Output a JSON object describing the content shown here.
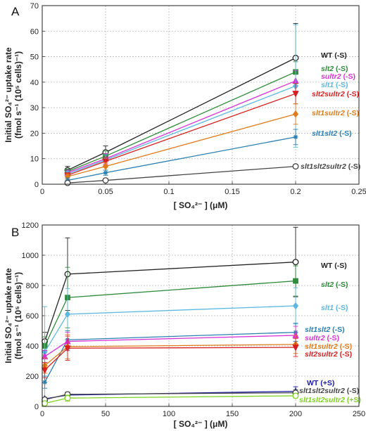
{
  "figure": {
    "ylabel_line1": "Initial SO₄²⁻ uptake rate",
    "ylabel_line2": "(fmol s⁻¹ (10⁵ cells)⁻¹)"
  },
  "chart_data": [
    {
      "panel": "A",
      "type": "line",
      "xlabel": "[ SO₄²⁻ ] (μM)",
      "ylabel": "Initial SO₄²⁻ uptake rate (fmol s⁻¹ (10⁵ cells)⁻¹)",
      "xlim": [
        0,
        0.25
      ],
      "ylim": [
        0,
        70
      ],
      "xticks": [
        0,
        0.05,
        0.1,
        0.15,
        0.2,
        0.25
      ],
      "xtick_labels": [
        "0",
        "0.05",
        "0.1",
        "0.15",
        "0.2",
        "0.25"
      ],
      "yticks": [
        0,
        10,
        20,
        30,
        40,
        50,
        60,
        70
      ],
      "ytick_labels": [
        "0",
        "10",
        "20",
        "30",
        "40",
        "50",
        "60",
        "70"
      ],
      "grid": true,
      "series": [
        {
          "name": "WT (-S)",
          "color": "#222222",
          "marker": "circle-open",
          "x": [
            0.02,
            0.05,
            0.2
          ],
          "y": [
            5.5,
            12.5,
            49.5
          ],
          "err": [
            1.5,
            2.5,
            13.5
          ]
        },
        {
          "name": "slt2 (-S)",
          "color": "#2e8b3a",
          "marker": "square",
          "x": [
            0.02,
            0.05,
            0.2
          ],
          "y": [
            5,
            11,
            44
          ],
          "err": [
            1,
            2,
            4
          ]
        },
        {
          "name": "sultr2 (-S)",
          "color": "#d633d6",
          "marker": "triangle-up",
          "x": [
            0.02,
            0.05,
            0.2
          ],
          "y": [
            4.5,
            10,
            40.5
          ],
          "err": [
            1,
            2,
            4
          ]
        },
        {
          "name": "slt1 (-S)",
          "color": "#5bb8e0",
          "marker": "diamond",
          "x": [
            0.02,
            0.05,
            0.2
          ],
          "y": [
            4,
            9.5,
            38.5
          ],
          "err": [
            1,
            2,
            24
          ]
        },
        {
          "name": "slt2sultr2 (-S)",
          "color": "#d62020",
          "marker": "triangle-down",
          "x": [
            0.02,
            0.05,
            0.2
          ],
          "y": [
            3.5,
            9,
            35.5
          ],
          "err": [
            1,
            1.5,
            4
          ]
        },
        {
          "name": "slt1sultr2 (-S)",
          "color": "#e07b1a",
          "marker": "diamond",
          "x": [
            0.02,
            0.05,
            0.2
          ],
          "y": [
            3,
            7,
            27.5
          ],
          "err": [
            1,
            1.5,
            4
          ]
        },
        {
          "name": "slt1slt2 (-S)",
          "color": "#2a7fb0",
          "marker": "star",
          "x": [
            0.02,
            0.05,
            0.2
          ],
          "y": [
            1.5,
            4.5,
            18.5
          ],
          "err": [
            1,
            1,
            3
          ]
        },
        {
          "name": "slt1slt2sultr2 (-S)",
          "color": "#444444",
          "marker": "circle-open",
          "x": [
            0.02,
            0.05,
            0.2
          ],
          "y": [
            0.5,
            1.5,
            7
          ],
          "err": [
            0.3,
            0.5,
            0.8
          ]
        }
      ]
    },
    {
      "panel": "B",
      "type": "line",
      "xlabel": "[ SO₄²⁻ ] (μM)",
      "ylabel": "Initial SO₄²⁻ uptake rate (fmol s⁻¹ (10⁵ cells)⁻¹)",
      "xlim": [
        0,
        250
      ],
      "ylim": [
        0,
        1200
      ],
      "xticks": [
        0,
        50,
        100,
        150,
        200,
        250
      ],
      "xtick_labels": [
        "0",
        "50",
        "100",
        "150",
        "200",
        "250"
      ],
      "yticks": [
        0,
        200,
        400,
        600,
        800,
        1000,
        1200
      ],
      "ytick_labels": [
        "0",
        "200",
        "400",
        "600",
        "800",
        "1000",
        "1200"
      ],
      "grid": true,
      "series": [
        {
          "name": "WT (-S)",
          "color": "#222222",
          "marker": "circle-open",
          "x": [
            2,
            20,
            200
          ],
          "y": [
            430,
            875,
            955
          ],
          "err": [
            60,
            240,
            230
          ]
        },
        {
          "name": "slt2 (-S)",
          "color": "#2e8b3a",
          "marker": "square",
          "x": [
            2,
            20,
            200
          ],
          "y": [
            400,
            720,
            830
          ],
          "err": [
            60,
            200,
            100
          ]
        },
        {
          "name": "slt1 (-S)",
          "color": "#5bb8e0",
          "marker": "diamond",
          "x": [
            2,
            20,
            200
          ],
          "y": [
            360,
            610,
            665
          ],
          "err": [
            300,
            170,
            120
          ]
        },
        {
          "name": "slt1slt2 (-S)",
          "color": "#2a7fb0",
          "marker": "star",
          "x": [
            2,
            20,
            200
          ],
          "y": [
            160,
            440,
            490
          ],
          "err": [
            40,
            60,
            60
          ]
        },
        {
          "name": "sultr2 (-S)",
          "color": "#d633d6",
          "marker": "triangle-up",
          "x": [
            2,
            20,
            200
          ],
          "y": [
            330,
            430,
            470
          ],
          "err": [
            40,
            60,
            60
          ]
        },
        {
          "name": "slt1sultr2 (-S)",
          "color": "#e07b1a",
          "marker": "diamond",
          "x": [
            2,
            20,
            200
          ],
          "y": [
            270,
            395,
            410
          ],
          "err": [
            50,
            80,
            60
          ]
        },
        {
          "name": "slt2sultr2 (-S)",
          "color": "#d62020",
          "marker": "triangle-down",
          "x": [
            2,
            20,
            200
          ],
          "y": [
            240,
            385,
            390
          ],
          "err": [
            50,
            80,
            60
          ]
        },
        {
          "name": "WT (+S)",
          "color": "#1a1aa8",
          "marker": "triangle-up",
          "x": [
            2,
            20,
            200
          ],
          "y": [
            50,
            75,
            100
          ],
          "err": [
            10,
            20,
            30
          ]
        },
        {
          "name": "slt1slt2sultr2 (-S)",
          "color": "#444444",
          "marker": "circle-open",
          "x": [
            2,
            20,
            200
          ],
          "y": [
            45,
            80,
            90
          ],
          "err": [
            10,
            15,
            20
          ]
        },
        {
          "name": "slt1slt2sultr2 (+S)",
          "color": "#7ed321",
          "marker": "circle-open",
          "x": [
            2,
            20,
            200
          ],
          "y": [
            20,
            55,
            70
          ],
          "err": [
            10,
            20,
            15
          ]
        }
      ]
    }
  ]
}
